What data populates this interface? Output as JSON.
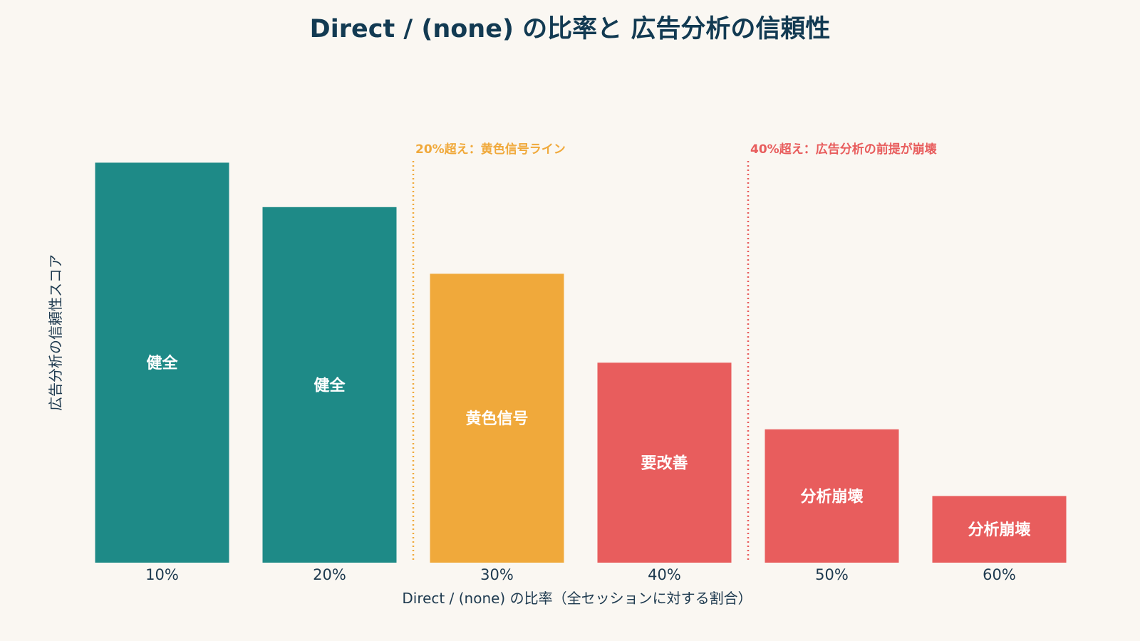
{
  "chart_data": {
    "type": "bar",
    "title": "Direct / (none) の比率と 広告分析の信頼性",
    "xlabel": "Direct / (none) の比率（全セッションに対する割合）",
    "ylabel": "広告分析の信頼性スコア",
    "ylim": [
      0,
      100
    ],
    "grid": false,
    "categories": [
      "10%",
      "20%",
      "30%",
      "40%",
      "50%",
      "60%"
    ],
    "values": [
      90,
      80,
      65,
      45,
      30,
      15
    ],
    "bar_labels": [
      "健全",
      "健全",
      "黄色信号",
      "要改善",
      "分析崩壊",
      "分析崩壊"
    ],
    "bar_colors": [
      "#1e8a87",
      "#1e8a87",
      "#f0a93b",
      "#e85d5d",
      "#e85d5d",
      "#e85d5d"
    ],
    "thresholds": [
      {
        "position": 25,
        "label": "20%超え：黄色信号ライン",
        "color": "#f0a93b"
      },
      {
        "position": 45,
        "label": "40%超え：広告分析の前提が崩壊",
        "color": "#e85d5d"
      }
    ]
  }
}
